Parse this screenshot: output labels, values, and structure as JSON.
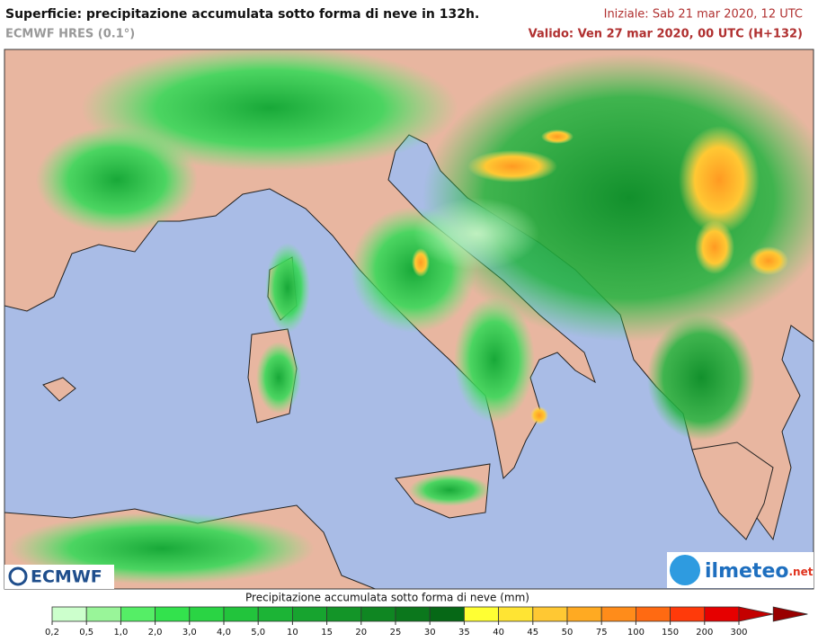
{
  "header": {
    "title": "Superficie: precipitazione accumulata sotto forma di neve in 132h.",
    "model": "ECMWF HRES (0.1°)",
    "init": "Iniziale: Sab 21 mar 2020, 12 UTC",
    "valid": "Valido: Ven 27 mar 2020, 00 UTC (H+132)"
  },
  "logos": {
    "left": "ECMWF",
    "right": "ilmeteo",
    "right_suffix": ".net"
  },
  "legend": {
    "title": "Precipitazione accumulata sotto forma di neve (mm)",
    "ticks": [
      "0,2",
      "0,5",
      "1,0",
      "2,0",
      "3,0",
      "4,0",
      "5,0",
      "10",
      "15",
      "20",
      "25",
      "30",
      "35",
      "40",
      "45",
      "50",
      "75",
      "100",
      "150",
      "200",
      "300"
    ],
    "colors": [
      "#ccffcc",
      "#99f599",
      "#55ee66",
      "#33e24d",
      "#2ad444",
      "#22c43c",
      "#1cb436",
      "#17a42f",
      "#139528",
      "#0f8622",
      "#0b771c",
      "#066816",
      "#ffff33",
      "#ffe433",
      "#ffc833",
      "#ffaa22",
      "#ff8c1a",
      "#ff6a12",
      "#ff3a0a",
      "#e60000",
      "#c40000",
      "#990000"
    ]
  }
}
